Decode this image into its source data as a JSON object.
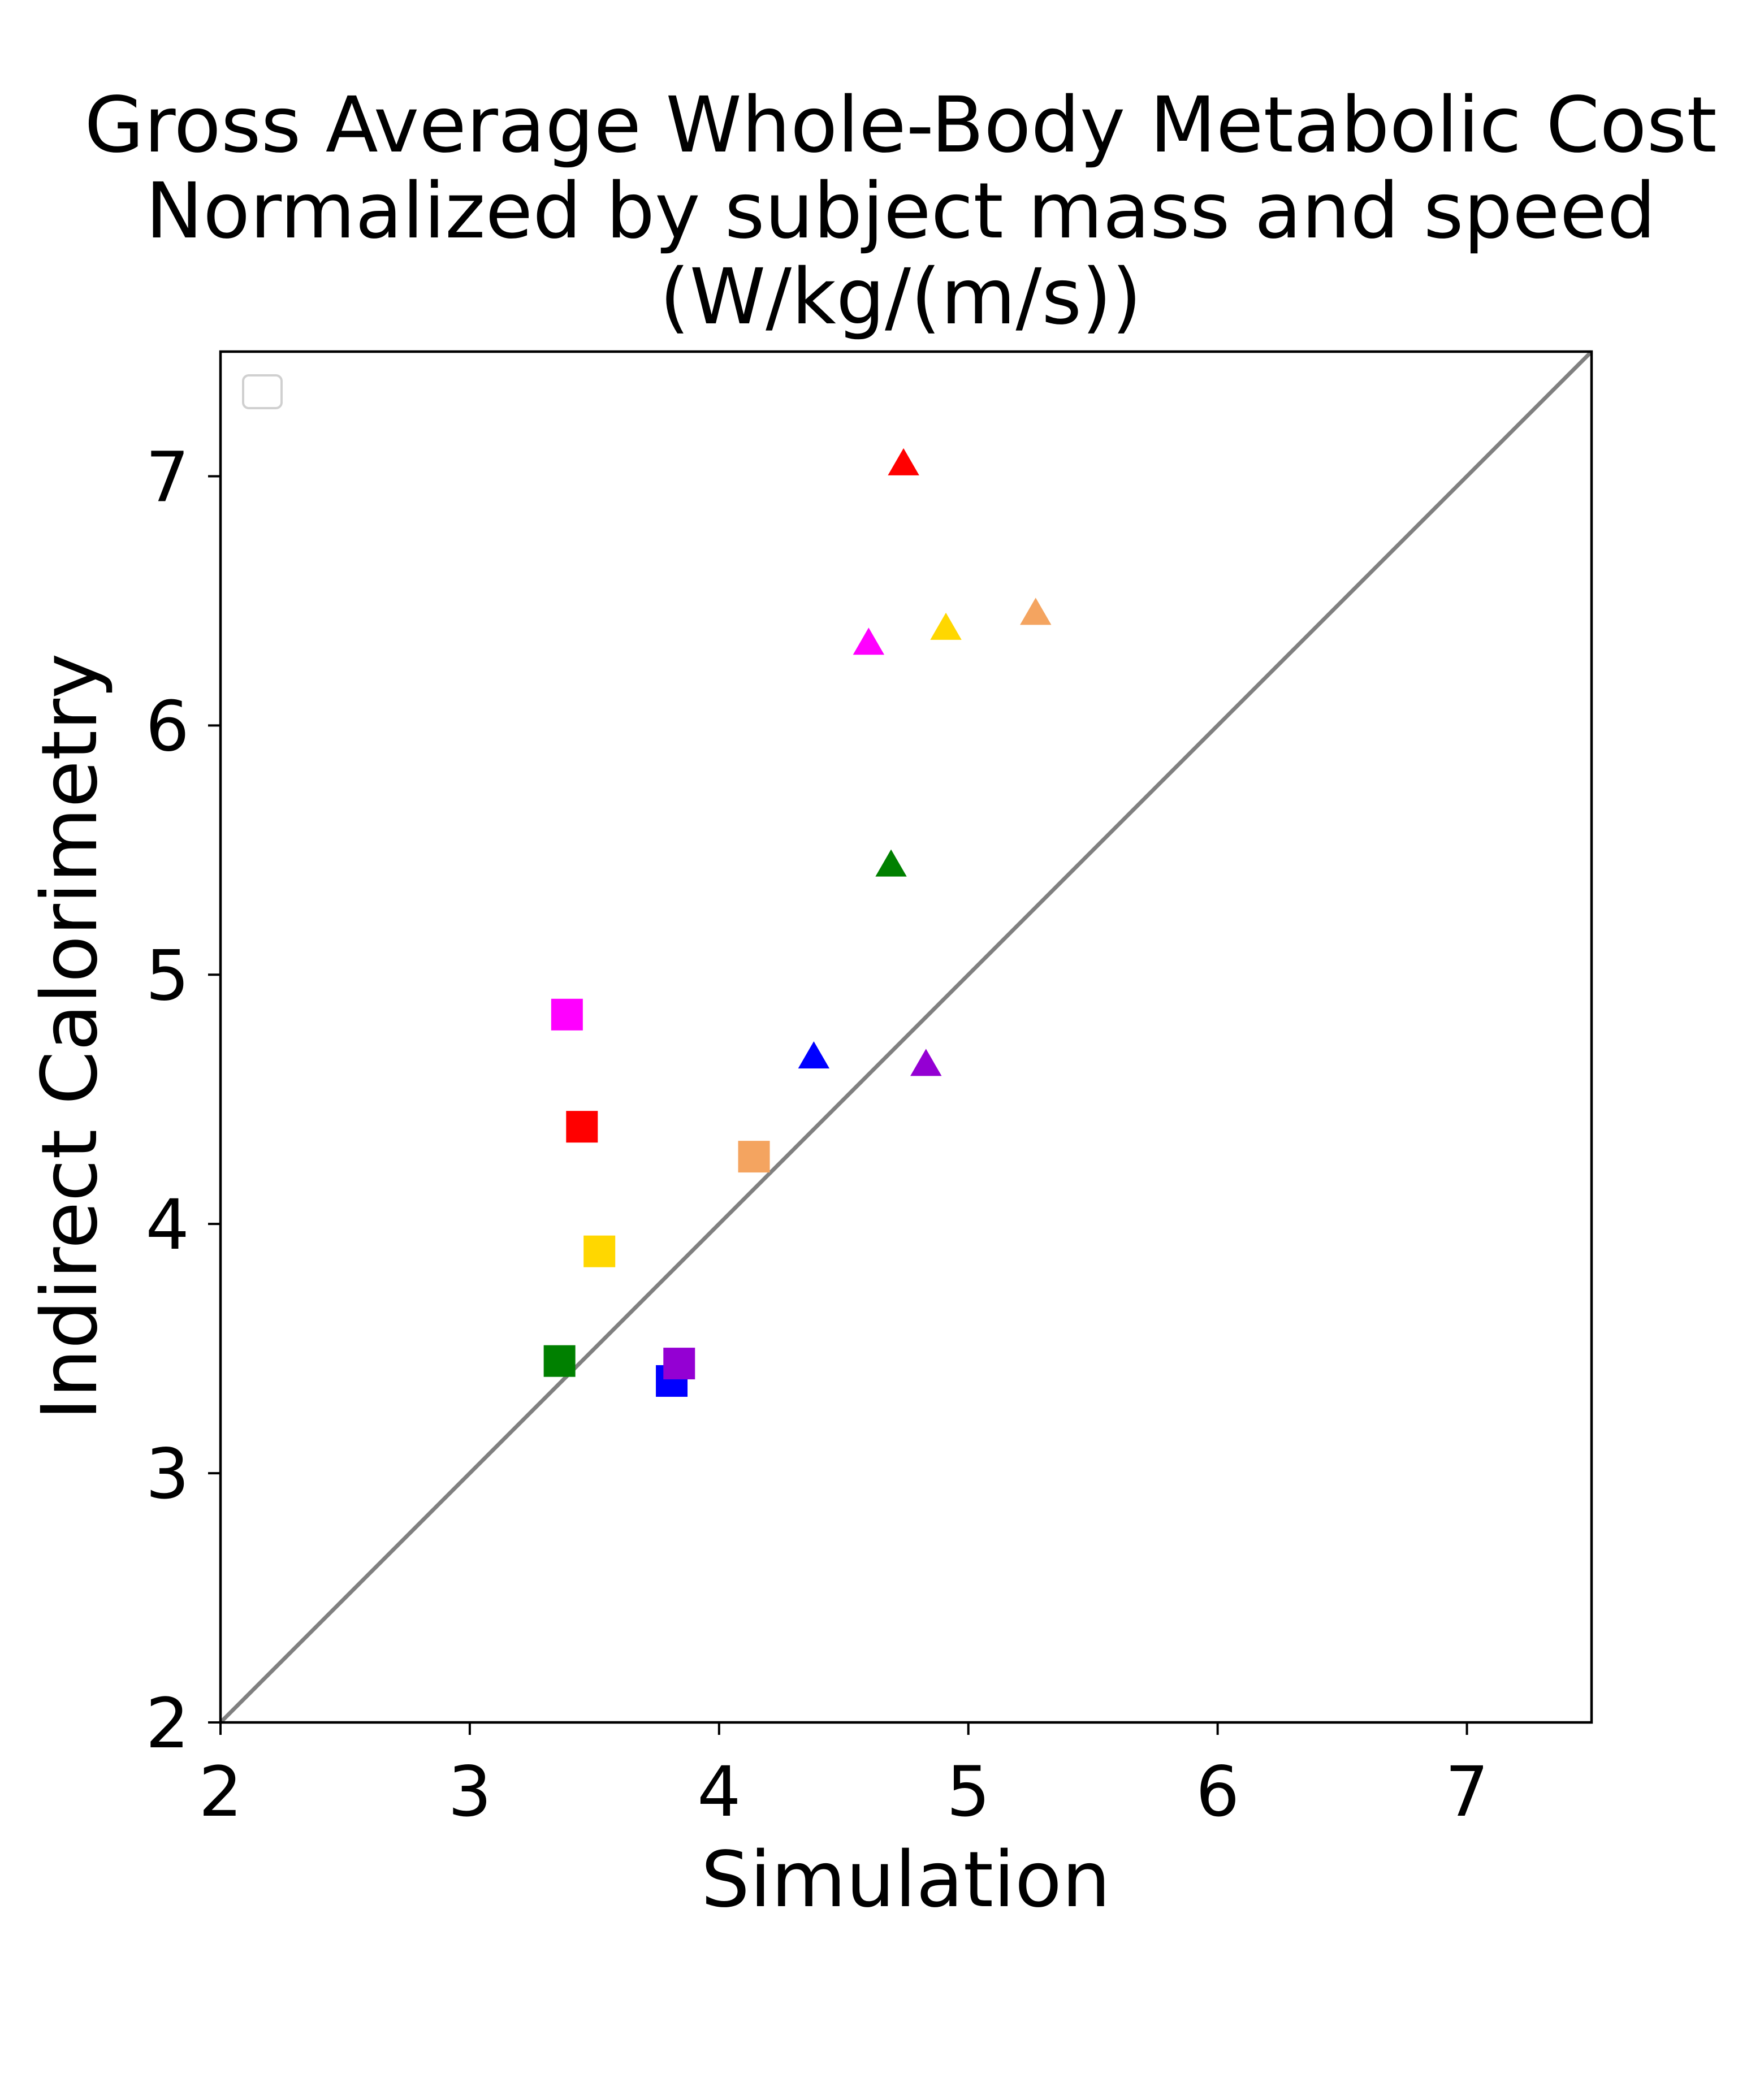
{
  "chart_data": {
    "type": "scatter",
    "title": [
      "Gross Average Whole-Body Metabolic Cost",
      "Normalized by subject mass and speed",
      "(W/kg/(m/s))"
    ],
    "xlabel": "Simulation",
    "ylabel": "Indirect Calorimetry",
    "xlim": [
      2,
      7.5
    ],
    "ylim": [
      2,
      7.5
    ],
    "xticks": [
      2,
      3,
      4,
      5,
      6,
      7
    ],
    "yticks": [
      2,
      3,
      4,
      5,
      6,
      7
    ],
    "grid": false,
    "legend": {
      "placement": "top-left",
      "entries": []
    },
    "reference_line": {
      "x": [
        2,
        7.5
      ],
      "y": [
        2,
        7.5
      ],
      "color": "#808080"
    },
    "series": [
      {
        "marker": "square",
        "points": [
          {
            "x": 3.39,
            "y": 4.84,
            "color": "#ff00ff"
          },
          {
            "x": 3.45,
            "y": 4.39,
            "color": "#ff0000"
          },
          {
            "x": 4.14,
            "y": 4.27,
            "color": "#f4a460"
          },
          {
            "x": 3.52,
            "y": 3.89,
            "color": "#ffd700"
          },
          {
            "x": 3.36,
            "y": 3.45,
            "color": "#008000"
          },
          {
            "x": 3.81,
            "y": 3.37,
            "color": "#0000ff"
          },
          {
            "x": 3.84,
            "y": 3.44,
            "color": "#9400d3"
          }
        ]
      },
      {
        "marker": "triangle",
        "points": [
          {
            "x": 4.74,
            "y": 7.04,
            "color": "#ff0000"
          },
          {
            "x": 4.6,
            "y": 6.32,
            "color": "#ff00ff"
          },
          {
            "x": 4.91,
            "y": 6.38,
            "color": "#ffd700"
          },
          {
            "x": 5.27,
            "y": 6.44,
            "color": "#f4a460"
          },
          {
            "x": 4.69,
            "y": 5.43,
            "color": "#008000"
          },
          {
            "x": 4.38,
            "y": 4.66,
            "color": "#0000ff"
          },
          {
            "x": 4.83,
            "y": 4.63,
            "color": "#9400d3"
          }
        ]
      }
    ]
  }
}
